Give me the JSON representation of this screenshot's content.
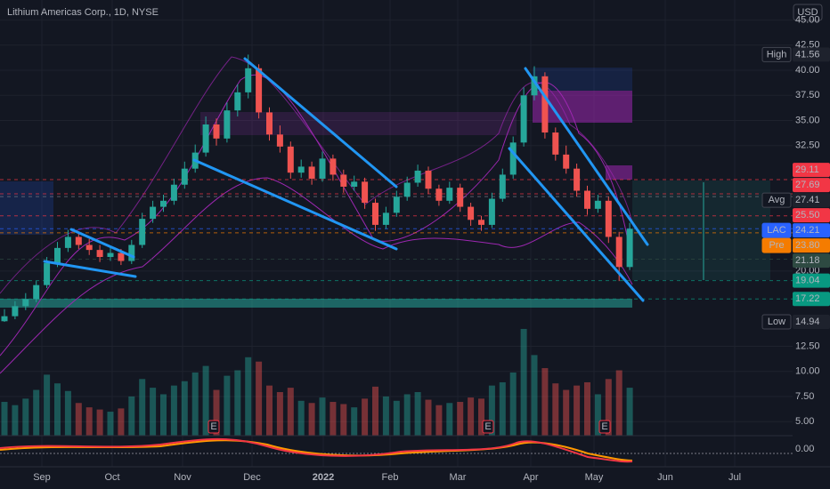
{
  "chart_data": {
    "type": "candlestick",
    "title": "Lithium Americas Corp., 1D, NYSE",
    "currency": "USD",
    "open": [
      15.0,
      15.5,
      16.5,
      17.2,
      18.6,
      20.8,
      22.3,
      23.4,
      22.6,
      22.1,
      21.4,
      21.8,
      21.0,
      22.6,
      25.2,
      26.4,
      27.0,
      28.6,
      30.2,
      31.8,
      34.6,
      33.2,
      36.0,
      37.8,
      40.2,
      35.8,
      33.6,
      32.4,
      29.8,
      30.4,
      29.2,
      31.2,
      29.6,
      28.4,
      28.9,
      26.8,
      24.6,
      25.8,
      27.4,
      28.8,
      30.0,
      28.2,
      27.0,
      28.3,
      26.4,
      25.1,
      24.6,
      27.2,
      29.6,
      32.8,
      37.5,
      39.4,
      33.8,
      31.6,
      30.2,
      28.0,
      26.2,
      27.0,
      23.4,
      20.4
    ],
    "high": [
      16.2,
      17.0,
      17.8,
      19.0,
      21.4,
      22.9,
      24.1,
      23.9,
      23.2,
      22.6,
      22.5,
      22.2,
      23.1,
      25.8,
      27.0,
      27.6,
      29.2,
      30.9,
      32.6,
      35.4,
      35.2,
      36.8,
      38.6,
      41.56,
      40.6,
      36.3,
      34.5,
      32.9,
      31.1,
      30.9,
      31.9,
      31.6,
      30.1,
      29.5,
      29.3,
      27.2,
      26.4,
      28.0,
      29.4,
      30.6,
      30.4,
      28.6,
      28.9,
      28.7,
      26.8,
      25.5,
      27.8,
      30.2,
      33.4,
      38.3,
      40.4,
      39.8,
      34.3,
      32.5,
      30.7,
      28.5,
      27.6,
      27.4,
      23.9,
      24.8
    ],
    "low": [
      14.94,
      15.2,
      16.1,
      16.9,
      18.3,
      20.4,
      21.9,
      22.2,
      21.6,
      20.9,
      21.0,
      20.6,
      20.7,
      22.3,
      24.8,
      25.9,
      26.6,
      28.2,
      29.8,
      31.4,
      32.5,
      32.8,
      35.4,
      37.2,
      35.2,
      33.0,
      31.8,
      29.2,
      29.3,
      28.6,
      28.9,
      29.0,
      27.8,
      28.0,
      26.2,
      24.0,
      24.2,
      25.4,
      27.0,
      28.4,
      27.7,
      26.5,
      26.7,
      25.9,
      24.5,
      24.0,
      24.3,
      26.9,
      29.2,
      32.4,
      37.0,
      33.2,
      31.0,
      29.7,
      27.4,
      25.6,
      25.8,
      22.8,
      19.0,
      20.1
    ],
    "close": [
      15.5,
      16.5,
      17.2,
      18.6,
      20.8,
      22.3,
      23.4,
      22.6,
      22.1,
      21.4,
      21.8,
      21.0,
      22.6,
      25.2,
      26.4,
      27.0,
      28.6,
      30.2,
      31.8,
      34.6,
      33.2,
      36.0,
      37.8,
      40.2,
      35.8,
      33.6,
      32.4,
      29.8,
      30.4,
      29.2,
      31.2,
      29.6,
      28.4,
      28.9,
      26.8,
      24.6,
      25.8,
      27.4,
      28.8,
      30.0,
      28.2,
      27.0,
      28.3,
      26.4,
      25.1,
      24.6,
      27.2,
      29.6,
      32.8,
      37.5,
      39.4,
      33.8,
      31.6,
      30.2,
      28.0,
      26.2,
      27.0,
      23.4,
      20.4,
      24.21
    ],
    "volume": [
      3.1,
      2.8,
      3.4,
      4.2,
      5.6,
      4.8,
      4.1,
      3.0,
      2.6,
      2.4,
      2.2,
      2.5,
      3.6,
      5.2,
      4.4,
      3.8,
      4.6,
      5.0,
      5.8,
      6.4,
      4.2,
      5.5,
      6.0,
      7.2,
      6.8,
      4.6,
      4.0,
      4.4,
      3.2,
      3.0,
      3.5,
      3.1,
      2.9,
      2.6,
      3.4,
      4.5,
      3.6,
      3.2,
      3.8,
      4.0,
      3.3,
      2.8,
      3.0,
      3.1,
      3.5,
      3.4,
      4.6,
      4.9,
      5.8,
      9.8,
      7.4,
      6.2,
      4.8,
      4.2,
      4.6,
      4.9,
      3.8,
      5.2,
      6.0,
      4.4
    ],
    "volume_ylim": [
      0,
      40
    ],
    "up_color": "#26a69a",
    "down_color": "#ef5350",
    "ylim": [
      3.6,
      47.0
    ],
    "yticks": [
      {
        "value": 45,
        "label": "45.00"
      },
      {
        "value": 42.5,
        "label": "42.50"
      },
      {
        "value": 40,
        "label": "40.00"
      },
      {
        "value": 37.5,
        "label": "37.50"
      },
      {
        "value": 35,
        "label": "35.00"
      },
      {
        "value": 32.5,
        "label": "32.50"
      },
      {
        "value": 20,
        "label": "20.00"
      },
      {
        "value": 12.5,
        "label": "12.50"
      },
      {
        "value": 10,
        "label": "10.00"
      },
      {
        "value": 7.5,
        "label": "7.50"
      },
      {
        "value": 5,
        "label": "5.00"
      }
    ],
    "x_labels": [
      "Sep",
      "Oct",
      "Nov",
      "Dec",
      "2022",
      "Feb",
      "Mar",
      "Apr",
      "May",
      "Jun",
      "Jul"
    ],
    "levels": [
      {
        "name": "High",
        "value": 41.56,
        "color": "#1e222d"
      },
      {
        "value": 29.11,
        "color": "#f23645"
      },
      {
        "value": 27.69,
        "color": "#f23645"
      },
      {
        "name": "Avg",
        "value": 27.41,
        "color": "#1e222d"
      },
      {
        "value": 25.5,
        "value_label": "25.50",
        "color": "#f23645"
      },
      {
        "name": "LAC",
        "value": 24.21,
        "color": "#2962ff"
      },
      {
        "name": "Pre",
        "value": 23.8,
        "value_label": "23.80",
        "color": "#f57c00"
      },
      {
        "value": 21.18,
        "color": "#2e4a42"
      },
      {
        "value": 19.04,
        "color": "#089981"
      },
      {
        "value": 17.22,
        "color": "#089981"
      },
      {
        "name": "Low",
        "value": 14.94,
        "color": "#1e222d"
      }
    ],
    "macd": {
      "yticks": [
        {
          "value": 0,
          "label": "0.00"
        }
      ],
      "ylim": [
        -2,
        1.5
      ]
    },
    "earnings_marker": "E"
  }
}
